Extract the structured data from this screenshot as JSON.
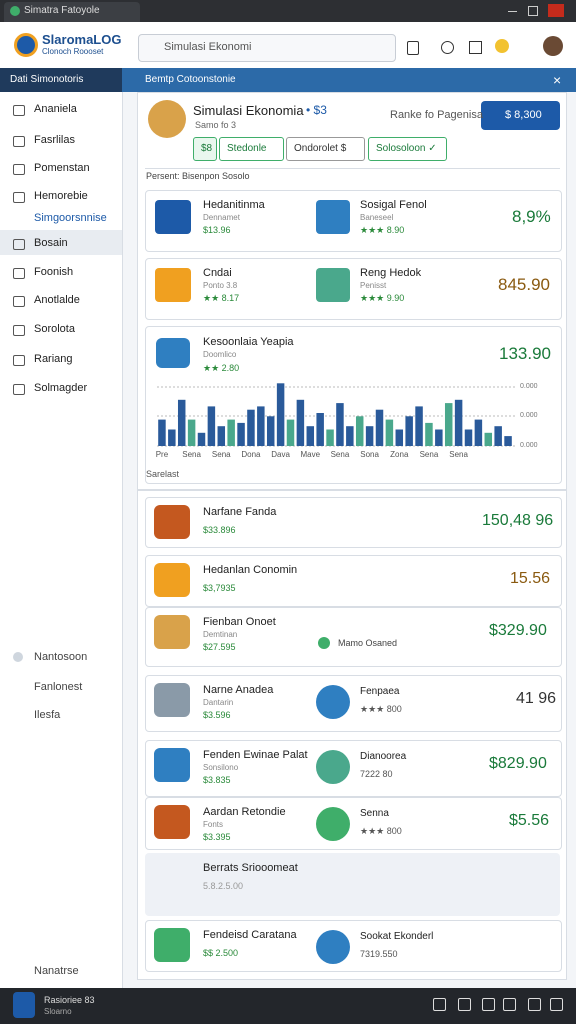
{
  "browser": {
    "tab": "Simatra Fatoyole"
  },
  "header": {
    "logo": "SlaromaLOG",
    "logo_sub": "Clonoch Roooset",
    "search": "Simulasi Ekonomi"
  },
  "subheader": {
    "left": "Dati Simonotoris",
    "right": "Bemtp Cotoonstonie"
  },
  "sidebar": {
    "items": [
      "Ananiela",
      "Fasrlilas",
      "Pomenstan",
      "Hemorebie",
      "Simgoorsnnise",
      "Bosain",
      "Foonish",
      "Anotlalde",
      "Sorolota",
      "Rariang",
      "Solmagder"
    ],
    "lower": [
      "Nantosoon",
      "Fanlonest",
      "Ilesfa",
      "Nanatrse"
    ]
  },
  "profile": {
    "name": "Simulasi Ekonomia",
    "badge": "• $3",
    "sub": "Samo fo 3",
    "right_text": "Ranke fo Pagenisa",
    "button": "$ 8,300",
    "tabs": [
      "$8",
      "Stedonle",
      "Ondorolet $",
      "Solosoloon ✓"
    ]
  },
  "section_label": "Persent: Bisenpon Sosolo",
  "cards": [
    {
      "left": {
        "title": "Hedanitinma",
        "sub": "Dennamet",
        "rating": "$13.96"
      },
      "right": {
        "title": "Sosigal Fenol",
        "sub": "Baneseel",
        "rating": "★★★ 8.90"
      },
      "value": "8,9%"
    },
    {
      "left": {
        "title": "Cndai",
        "sub": "Ponto 3.8",
        "rating": "★★ 8.17"
      },
      "right": {
        "title": "Reng Hedok",
        "sub": "Penisst",
        "rating": "★★★ 9.90"
      },
      "value": "845.90"
    }
  ],
  "chart_card": {
    "title": "Kesoonlaia Yeapia",
    "sub": "Doomlico",
    "rating": "★★ 2.80",
    "value": "133.90",
    "scale_labels": [
      "0.000",
      "0.000",
      "0.000"
    ],
    "footer": "Sarelast"
  },
  "chart_data": {
    "type": "bar",
    "categories": [
      "Pre",
      null,
      null,
      "Sena",
      null,
      null,
      "Sena",
      null,
      null,
      "Dona",
      null,
      null,
      "Dava",
      null,
      null,
      "Mave",
      null,
      null,
      "Sena",
      null,
      null,
      "Sona",
      null,
      null,
      "Zona",
      null,
      null,
      "Sena",
      null,
      null,
      "Sena",
      null,
      null,
      null,
      null,
      null
    ],
    "values": [
      40,
      25,
      70,
      40,
      20,
      60,
      30,
      40,
      35,
      55,
      60,
      45,
      95,
      40,
      70,
      30,
      50,
      25,
      65,
      30,
      45,
      30,
      55,
      40,
      25,
      45,
      60,
      35,
      25,
      65,
      70,
      25,
      40,
      20,
      30,
      15
    ],
    "colors": [
      "#2a5a9a",
      "#2a5a9a",
      "#2a5a9a",
      "#4aa88c",
      "#2a5a9a",
      "#2a5a9a",
      "#2a5a9a",
      "#4aa88c",
      "#2a5a9a",
      "#2a5a9a",
      "#2a5a9a",
      "#2a5a9a",
      "#2a5a9a",
      "#4aa88c",
      "#2a5a9a",
      "#2a5a9a",
      "#2a5a9a",
      "#4aa88c",
      "#2a5a9a",
      "#2a5a9a",
      "#4aa88c",
      "#2a5a9a",
      "#2a5a9a",
      "#4aa88c",
      "#2a5a9a",
      "#2a5a9a",
      "#2a5a9a",
      "#4aa88c",
      "#2a5a9a",
      "#4aa88c",
      "#2a5a9a",
      "#2a5a9a",
      "#2a5a9a",
      "#4aa88c",
      "#2a5a9a",
      "#2a5a9a"
    ],
    "ylim": [
      0,
      100
    ]
  },
  "list": [
    {
      "title": "Narfane Fanda",
      "rating": "$33.896",
      "value": "150,48 96"
    },
    {
      "title": "Hedanlan Conomin",
      "rating": "$3,7935",
      "value": "15.56"
    },
    {
      "title": "Fienban Onoet",
      "sub": "Demtinan",
      "rating": "$27.595",
      "middle": "Mamo Osaned",
      "value": "$329.90"
    },
    {
      "title": "Narne Anadea",
      "sub": "Dantarin",
      "rating": "$3.596",
      "right": {
        "title": "Fenpaea",
        "rating": "★★★ 800"
      },
      "value": "41 96"
    },
    {
      "title": "Fenden Ewinae Palat",
      "sub": "Sonsilono",
      "rating": "$3.835",
      "right": {
        "title": "Dianoorea",
        "rating": "7222 80"
      },
      "value": "$829.90"
    },
    {
      "title": "Aardan Retondie",
      "sub": "Fonts",
      "rating": "$3.395",
      "right": {
        "title": "Senna",
        "rating": "★★★ 800"
      },
      "value": "$5.56"
    },
    {
      "title": "Berrats Sriooomeat",
      "rating": "5.8.2.5.00"
    },
    {
      "title": "Fendeisd Caratana",
      "rating": "$$ 2.500",
      "right": {
        "title": "Sookat Ekonderl",
        "rating": "7319.550"
      }
    }
  ],
  "footer": {
    "title": "Rasioriee 83",
    "sub": "Sloarno"
  }
}
